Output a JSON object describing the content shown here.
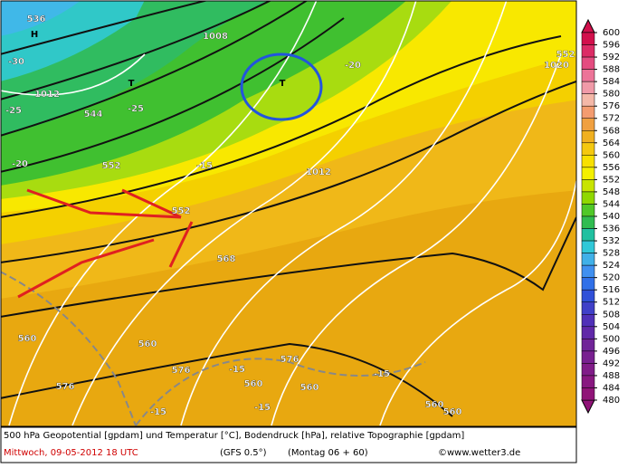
{
  "map": {
    "labels": [
      "536",
      "H",
      "-30",
      "1012",
      "T",
      "544",
      "-25",
      "-25",
      "1008",
      "T",
      "-20",
      "1020",
      "552",
      "-20",
      "552",
      "1012",
      "-15",
      "552",
      "568",
      "560",
      "560",
      "576",
      "576",
      "-15",
      "-15",
      "560",
      "560",
      "-15",
      "576",
      "-15",
      "560",
      "560"
    ],
    "footer": {
      "caption": "500 hPa Geopotential [gpdam] und Temperatur [°C], Bodendruck [hPa], relative Topographie [gpdam]",
      "date": "Mittwoch, 09-05-2012  18 UTC",
      "model": "(GFS 0.5°)",
      "run": "(Montag 06 + 60)",
      "credit": "©www.wetter3.de"
    }
  },
  "scale": {
    "levels": [
      600,
      596,
      592,
      588,
      584,
      580,
      576,
      572,
      568,
      564,
      560,
      556,
      552,
      548,
      544,
      540,
      536,
      532,
      528,
      524,
      520,
      516,
      512,
      508,
      504,
      500,
      496,
      492,
      488,
      484,
      480
    ],
    "colors": [
      "#d2104c",
      "#dc2c66",
      "#e44c80",
      "#ec7498",
      "#f09aa8",
      "#f4b8a8",
      "#f49c70",
      "#f0a040",
      "#f0b020",
      "#f4c810",
      "#f8e000",
      "#f4f000",
      "#c8e400",
      "#90d800",
      "#50c828",
      "#30bc50",
      "#20c0a0",
      "#30c8d8",
      "#40b0e8",
      "#4090f0",
      "#3070e8",
      "#3050d8",
      "#4040c8",
      "#5030b8",
      "#6028a8",
      "#702498",
      "#782090",
      "#801c88",
      "#881880",
      "#901478"
    ]
  }
}
